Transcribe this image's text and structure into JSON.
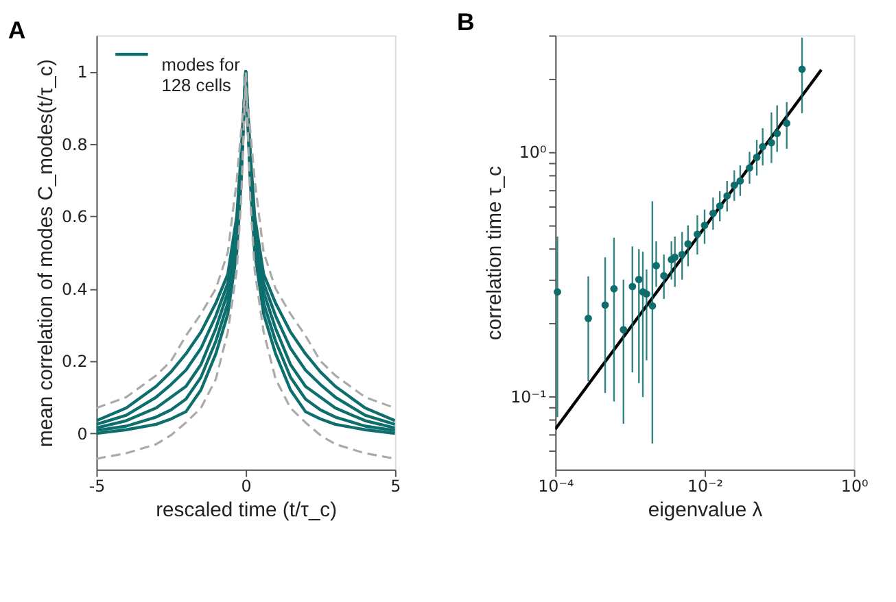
{
  "chart_data": [
    {
      "type": "line",
      "title": "A",
      "xlabel": "rescaled time (t/τ_c)",
      "ylabel": "mean correlation of modes  C_modes(t/τ_c)",
      "xlim": [
        -5,
        5
      ],
      "xticks": [
        {
          "value": -5,
          "label": "-5"
        },
        0,
        5
      ],
      "ylim": [
        -0.1,
        1.1
      ],
      "yticks": [
        0,
        0.2,
        0.4,
        0.6,
        0.8,
        1
      ],
      "grid": false,
      "legend": "top left",
      "series": [
        {
          "name": "modes for\n128 cells",
          "color": "#0e6e6e",
          "line_style": "solid",
          "x": [
            -5,
            -4,
            -3,
            -2.5,
            -2,
            -1.5,
            -1,
            -0.6,
            -0.3,
            -0.15,
            0,
            0.15,
            0.3,
            0.6,
            1,
            1.5,
            2,
            2.5,
            3,
            4,
            5
          ],
          "values": [
            0.035,
            0.07,
            0.13,
            0.17,
            0.22,
            0.28,
            0.36,
            0.44,
            0.6,
            0.78,
            1,
            0.78,
            0.6,
            0.44,
            0.36,
            0.28,
            0.22,
            0.17,
            0.13,
            0.07,
            0.035
          ]
        },
        {
          "color": "#0e6e6e",
          "line_style": "solid",
          "x": [
            -5,
            -4,
            -3,
            -2.5,
            -2,
            -1.5,
            -1,
            -0.6,
            -0.3,
            -0.15,
            0,
            0.15,
            0.3,
            0.6,
            1,
            1.5,
            2,
            2.5,
            3,
            4,
            5
          ],
          "values": [
            0.025,
            0.05,
            0.1,
            0.135,
            0.175,
            0.235,
            0.325,
            0.415,
            0.575,
            0.76,
            1,
            0.76,
            0.575,
            0.415,
            0.325,
            0.235,
            0.175,
            0.135,
            0.1,
            0.05,
            0.025
          ]
        },
        {
          "color": "#0e6e6e",
          "line_style": "solid",
          "x": [
            -5,
            -4,
            -3,
            -2.5,
            -2,
            -1.5,
            -1,
            -0.6,
            -0.3,
            -0.15,
            0,
            0.15,
            0.3,
            0.6,
            1,
            1.5,
            2,
            2.5,
            3,
            4,
            5
          ],
          "values": [
            0.015,
            0.035,
            0.07,
            0.1,
            0.13,
            0.19,
            0.29,
            0.39,
            0.55,
            0.74,
            1,
            0.74,
            0.55,
            0.39,
            0.29,
            0.19,
            0.13,
            0.1,
            0.07,
            0.035,
            0.015
          ]
        },
        {
          "color": "#0e6e6e",
          "line_style": "solid",
          "x": [
            -5,
            -4,
            -3,
            -2.5,
            -2,
            -1.5,
            -1,
            -0.6,
            -0.3,
            -0.15,
            0,
            0.15,
            0.3,
            0.6,
            1,
            1.5,
            2,
            2.5,
            3,
            4,
            5
          ],
          "values": [
            0.008,
            0.02,
            0.045,
            0.065,
            0.095,
            0.155,
            0.255,
            0.36,
            0.525,
            0.72,
            1,
            0.72,
            0.525,
            0.36,
            0.255,
            0.155,
            0.095,
            0.065,
            0.045,
            0.02,
            0.008
          ]
        },
        {
          "color": "#0e6e6e",
          "line_style": "solid",
          "x": [
            -5,
            -4,
            -3,
            -2.5,
            -2,
            -1.5,
            -1,
            -0.6,
            -0.3,
            -0.15,
            0,
            0.15,
            0.3,
            0.6,
            1,
            1.5,
            2,
            2.5,
            3,
            4,
            5
          ],
          "values": [
            0.0,
            0.01,
            0.025,
            0.04,
            0.06,
            0.12,
            0.22,
            0.33,
            0.5,
            0.7,
            1,
            0.7,
            0.5,
            0.33,
            0.22,
            0.12,
            0.06,
            0.04,
            0.025,
            0.01,
            0.0
          ]
        },
        {
          "color": "#aaaaaa",
          "line_style": "dashed",
          "x": [
            -5,
            -4,
            -3,
            -2.5,
            -2,
            -1.5,
            -1,
            -0.6,
            -0.3,
            -0.15,
            0,
            0.15,
            0.3,
            0.6,
            1,
            1.5,
            2,
            2.5,
            3,
            4,
            5
          ],
          "values": [
            0.07,
            0.1,
            0.16,
            0.2,
            0.27,
            0.33,
            0.4,
            0.5,
            0.7,
            0.84,
            0.96,
            0.84,
            0.7,
            0.5,
            0.4,
            0.33,
            0.27,
            0.2,
            0.16,
            0.1,
            0.07
          ]
        },
        {
          "color": "#aaaaaa",
          "line_style": "dashed",
          "x": [
            -5,
            -4,
            -3,
            -2.5,
            -2,
            -1.5,
            -1,
            -0.6,
            -0.3,
            -0.15,
            0,
            0.15,
            0.3,
            0.6,
            1,
            1.5,
            2,
            2.5,
            3,
            4,
            5
          ],
          "values": [
            -0.07,
            -0.055,
            -0.03,
            -0.005,
            0.03,
            0.07,
            0.15,
            0.28,
            0.45,
            0.65,
            1,
            0.65,
            0.45,
            0.28,
            0.15,
            0.07,
            0.03,
            -0.005,
            -0.03,
            -0.055,
            -0.07
          ]
        }
      ]
    },
    {
      "type": "scatter",
      "title": "B",
      "xlabel": "eigenvalue  λ",
      "ylabel": "correlation time  τ_c",
      "log": "xy",
      "grid": false,
      "xlim": [
        0.0001,
        1
      ],
      "xticks": [
        {
          "value": 0.0001,
          "label": "10⁻⁴"
        },
        {
          "value": 0.01,
          "label": "10⁻²"
        },
        {
          "value": 1,
          "label": "10⁰"
        }
      ],
      "ylim": [
        0.05,
        3
      ],
      "yticks": [
        {
          "value": 0.06,
          "label": null
        },
        {
          "value": 0.07,
          "label": null
        },
        {
          "value": 0.08,
          "label": null
        },
        {
          "value": 0.09,
          "label": null
        },
        {
          "value": 0.1,
          "label": "10⁻¹"
        },
        {
          "value": 0.2,
          "label": null
        },
        {
          "value": 0.3,
          "label": null
        },
        {
          "value": 0.4,
          "label": null
        },
        {
          "value": 0.5,
          "label": null
        },
        {
          "value": 0.6,
          "label": null
        },
        {
          "value": 0.7,
          "label": null
        },
        {
          "value": 0.8,
          "label": null
        },
        {
          "value": 0.9,
          "label": null
        },
        {
          "value": 1,
          "label": "10⁰"
        },
        {
          "value": 2,
          "label": null
        },
        {
          "value": 3,
          "label": null
        }
      ],
      "series": [
        {
          "type": "line",
          "color": "#000000",
          "line_style": "solid",
          "x": [
            0.0001,
            0.366
          ],
          "values": [
            0.0732,
            2.17
          ]
        },
        {
          "type": "scatter",
          "color": "#0e6e6e",
          "marker": "circle",
          "x": [
            0.000107,
            0.000277,
            0.000466,
            0.000612,
            0.00082,
            0.00108,
            0.00132,
            0.00149,
            0.00167,
            0.002,
            0.00225,
            0.00285,
            0.0036,
            0.004,
            0.005,
            0.006,
            0.008,
            0.01,
            0.013,
            0.016,
            0.02,
            0.025,
            0.03,
            0.04,
            0.05,
            0.06,
            0.0786,
            0.0936,
            0.126,
            0.202
          ],
          "values": [
            0.267,
            0.208,
            0.236,
            0.275,
            0.187,
            0.281,
            0.3,
            0.267,
            0.262,
            0.234,
            0.342,
            0.311,
            0.362,
            0.37,
            0.38,
            0.42,
            0.46,
            0.5,
            0.56,
            0.6,
            0.66,
            0.73,
            0.76,
            0.86,
            0.95,
            1.05,
            1.09,
            1.19,
            1.31,
            2.18
          ],
          "errors": [
            [
              0.082,
              0.45
            ],
            [
              0.115,
              0.309
            ],
            [
              0.103,
              0.37
            ],
            [
              0.095,
              0.445
            ],
            [
              0.077,
              0.3
            ],
            [
              0.125,
              0.41
            ],
            [
              0.113,
              0.4
            ],
            [
              0.099,
              0.39
            ],
            [
              0.14,
              0.33
            ],
            [
              0.064,
              0.628
            ],
            [
              0.28,
              0.43
            ],
            [
              0.25,
              0.38
            ],
            [
              0.3,
              0.43
            ],
            [
              0.28,
              0.45
            ],
            [
              0.3,
              0.47
            ],
            [
              0.34,
              0.5
            ],
            [
              0.38,
              0.55
            ],
            [
              0.42,
              0.58
            ],
            [
              0.48,
              0.65
            ],
            [
              0.52,
              0.69
            ],
            [
              0.57,
              0.76
            ],
            [
              0.63,
              0.84
            ],
            [
              0.66,
              0.88
            ],
            [
              0.74,
              1.0
            ],
            [
              0.8,
              1.12
            ],
            [
              0.88,
              1.25
            ],
            [
              0.9,
              1.45
            ],
            [
              1.0,
              1.55
            ],
            [
              1.03,
              1.6
            ],
            [
              1.44,
              2.94
            ]
          ]
        }
      ]
    }
  ]
}
